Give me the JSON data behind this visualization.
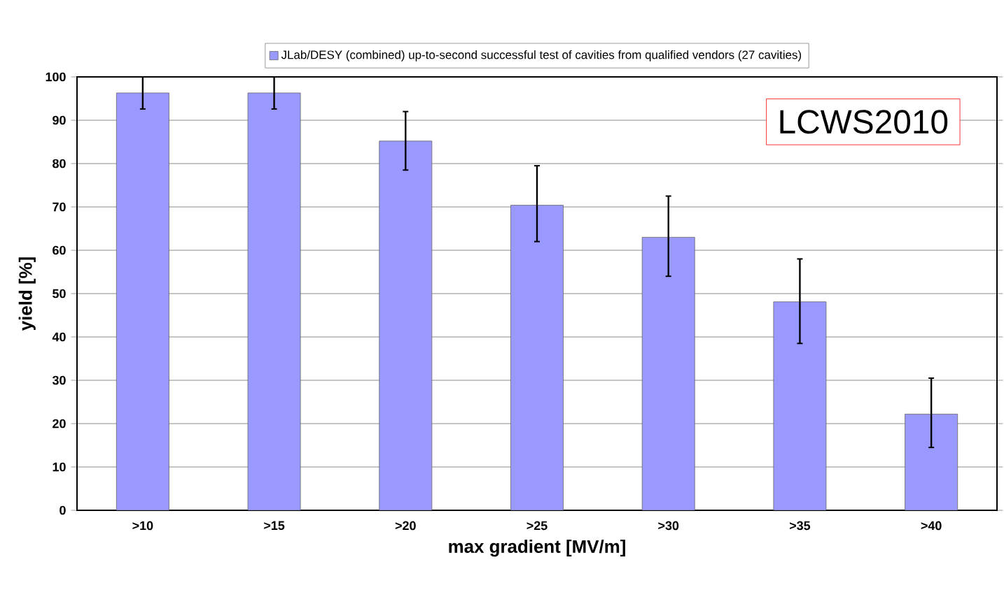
{
  "chart_data": {
    "type": "bar",
    "xlabel": "max gradient [MV/m]",
    "ylabel": "yield [%]",
    "categories": [
      ">10",
      ">15",
      ">20",
      ">25",
      ">30",
      ">35",
      ">40"
    ],
    "series": [
      {
        "name": "JLab/DESY (combined) up-to-second successful test of cavities from qualified vendors (27 cavities)",
        "color": "#9999ff",
        "values": [
          96.3,
          96.3,
          85.2,
          70.4,
          63.0,
          48.1,
          22.2
        ],
        "errors": [
          [
            92.6,
            100
          ],
          [
            92.6,
            100
          ],
          [
            78.5,
            92
          ],
          [
            62,
            79.5
          ],
          [
            54,
            72.5
          ],
          [
            38.5,
            58
          ],
          [
            14.5,
            30.5
          ]
        ]
      }
    ],
    "ylim": [
      0,
      100
    ],
    "yticks": [
      0,
      10,
      20,
      30,
      40,
      50,
      60,
      70,
      80,
      90,
      100
    ],
    "grid": "y",
    "legend": "top",
    "annotations": [
      "LCWS2010"
    ]
  }
}
